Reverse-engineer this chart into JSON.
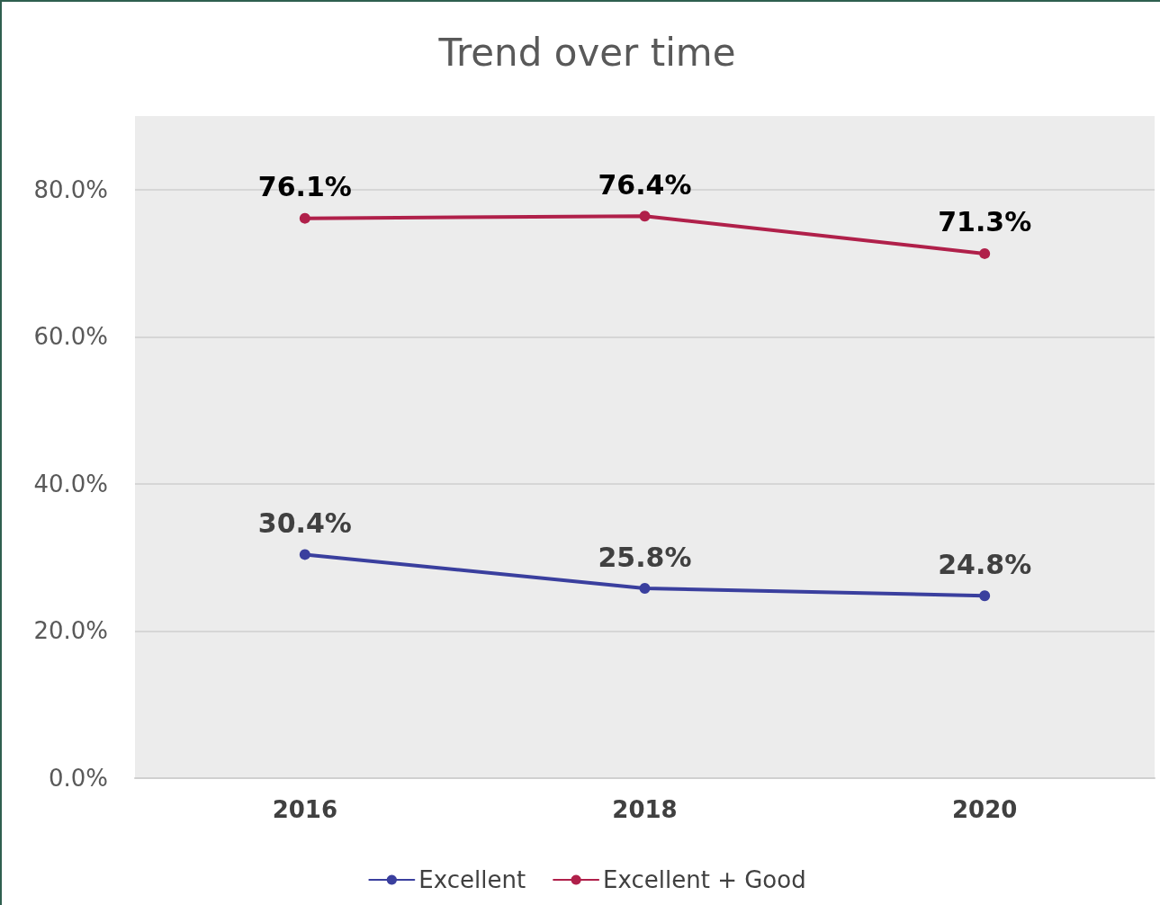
{
  "chart_data": {
    "type": "line",
    "title": "Trend over time",
    "categories": [
      "2016",
      "2018",
      "2020"
    ],
    "series": [
      {
        "name": "Excellent",
        "color": "#3a3f9e",
        "values": [
          30.4,
          25.8,
          24.8
        ],
        "value_labels": [
          "30.4%",
          "25.8%",
          "24.8%"
        ]
      },
      {
        "name": "Excellent + Good",
        "color": "#b0204a",
        "values": [
          76.1,
          76.4,
          71.3
        ],
        "value_labels": [
          "76.1%",
          "76.4%",
          "71.3%"
        ]
      }
    ],
    "ylim": [
      0,
      90
    ],
    "yticks": [
      {
        "value": 0,
        "label": "0.0%"
      },
      {
        "value": 20,
        "label": "20.0%"
      },
      {
        "value": 40,
        "label": "40.0%"
      },
      {
        "value": 60,
        "label": "60.0%"
      },
      {
        "value": 80,
        "label": "80.0%"
      }
    ],
    "grid": "y",
    "legend": "bottom",
    "marker": "circle",
    "line_style": "solid"
  }
}
